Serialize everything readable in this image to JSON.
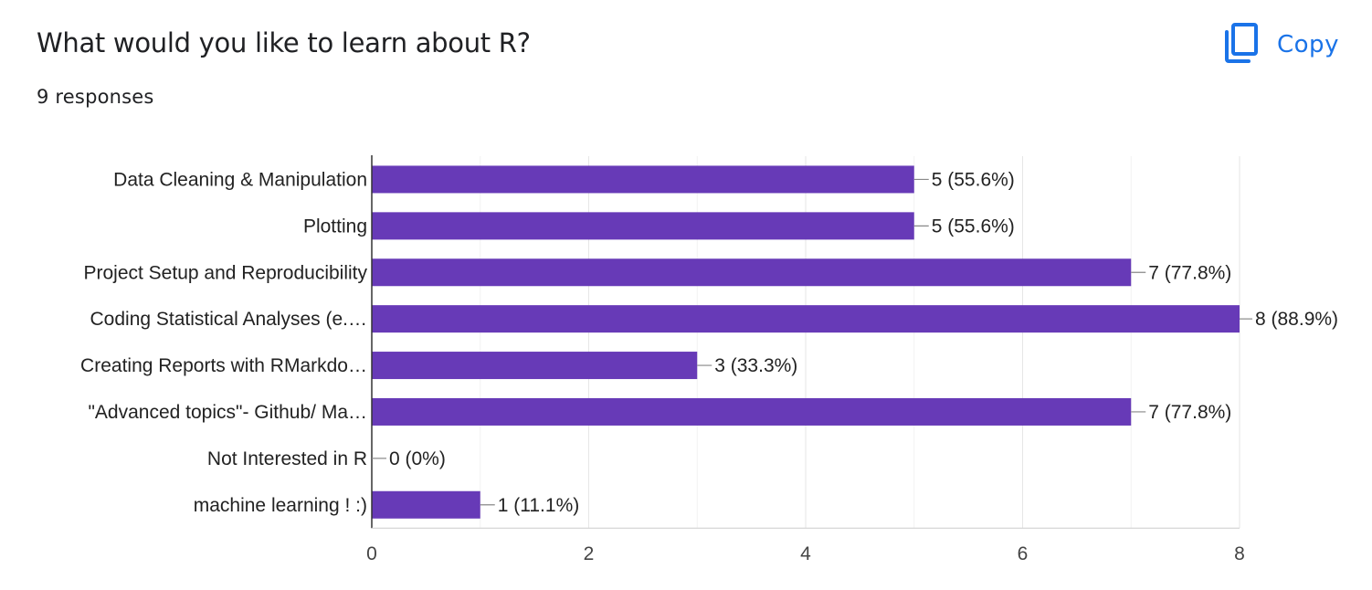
{
  "header": {
    "title": "What would you like to learn about R?",
    "subtitle": "9 responses",
    "copy_label": "Copy",
    "copy_icon": "copy-icon",
    "accent_color": "#1a73e8"
  },
  "chart_data": {
    "type": "bar",
    "orientation": "horizontal",
    "categories": [
      "Data Cleaning & Manipulation",
      "Plotting",
      "Project Setup and Reproducibility",
      "Coding Statistical Analyses (e.…",
      "Creating Reports with RMarkdo…",
      "\"Advanced topics\"- Github/ Ma…",
      "Not Interested in R",
      "machine learning ! :)"
    ],
    "values": [
      5,
      5,
      7,
      8,
      3,
      7,
      0,
      1
    ],
    "data_labels": [
      "5 (55.6%)",
      "5 (55.6%)",
      "7 (77.8%)",
      "8 (88.9%)",
      "3 (33.3%)",
      "7 (77.8%)",
      "0 (0%)",
      "1 (11.1%)"
    ],
    "xlim": [
      0,
      8
    ],
    "xticks": [
      "0",
      "2",
      "4",
      "6",
      "8"
    ],
    "grid": true,
    "bar_color": "#673ab7"
  }
}
